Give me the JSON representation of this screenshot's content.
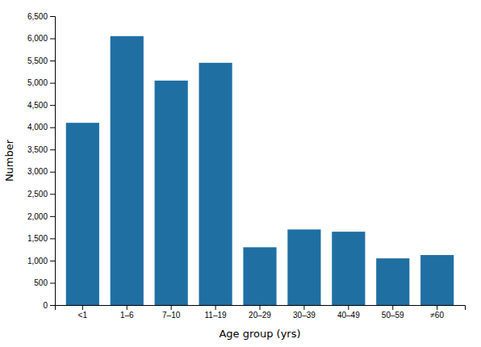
{
  "chart_data": {
    "type": "bar",
    "xlabel": "Age group (yrs)",
    "ylabel": "Number",
    "categories": [
      "<1",
      "1–6",
      "7–10",
      "11–19",
      "20–29",
      "30–39",
      "40–49",
      "50–59",
      "≠60"
    ],
    "values": [
      4100,
      6050,
      5050,
      5450,
      1300,
      1700,
      1650,
      1050,
      1125
    ],
    "color": "#1f6fa3",
    "ylim": [
      0,
      6500
    ],
    "yticks": [
      0,
      500,
      {
        "value": 1000,
        "label": "1,000"
      },
      {
        "value": 1500,
        "label": "1,500"
      },
      {
        "value": 2000,
        "label": "2,000"
      },
      {
        "value": 2500,
        "label": "2,500"
      },
      {
        "value": 3000,
        "label": "3,000"
      },
      {
        "value": 3500,
        "label": "3,500"
      },
      {
        "value": 4000,
        "label": "4,000"
      },
      {
        "value": 4500,
        "label": "4,500"
      },
      {
        "value": 5000,
        "label": "5,000"
      },
      {
        "value": 5500,
        "label": "5,500"
      },
      {
        "value": 6000,
        "label": "6,000"
      },
      {
        "value": 6500,
        "label": "6,500"
      }
    ],
    "grid": false
  }
}
